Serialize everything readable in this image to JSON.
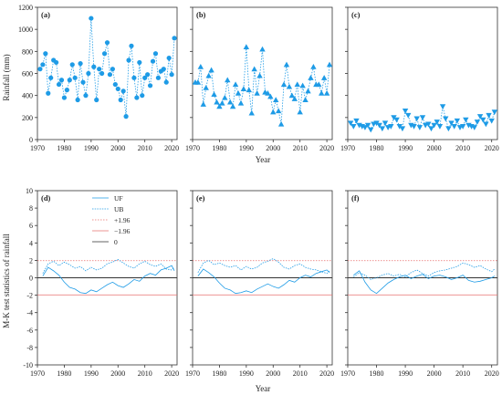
{
  "figure": {
    "top_ylabel": "Rainfall (mm)",
    "bottom_ylabel": "M-K test statistics of rainfall",
    "xlabel": "Year"
  },
  "chart_data": [
    {
      "id": "a",
      "type": "scatter",
      "label": "(a)",
      "marker": "circle",
      "color": "#1E9BE6",
      "xlim": [
        1970,
        2022
      ],
      "ylim": [
        0,
        1200
      ],
      "xticks": [
        1970,
        1980,
        1990,
        2000,
        2010,
        2020
      ],
      "yticks": [
        0,
        200,
        400,
        600,
        800,
        1000,
        1200
      ],
      "x": [
        1971,
        1972,
        1973,
        1974,
        1975,
        1976,
        1977,
        1978,
        1979,
        1980,
        1981,
        1982,
        1983,
        1984,
        1985,
        1986,
        1987,
        1988,
        1989,
        1990,
        1991,
        1992,
        1993,
        1994,
        1995,
        1996,
        1997,
        1998,
        1999,
        2000,
        2001,
        2002,
        2003,
        2004,
        2005,
        2006,
        2007,
        2008,
        2009,
        2010,
        2011,
        2012,
        2013,
        2014,
        2015,
        2016,
        2017,
        2018,
        2019,
        2020,
        2021
      ],
      "values": [
        640,
        680,
        780,
        420,
        560,
        720,
        700,
        500,
        540,
        380,
        450,
        540,
        680,
        560,
        360,
        690,
        520,
        400,
        600,
        1100,
        660,
        360,
        640,
        600,
        780,
        880,
        590,
        640,
        500,
        460,
        360,
        440,
        210,
        720,
        850,
        560,
        380,
        700,
        400,
        560,
        590,
        490,
        710,
        780,
        560,
        620,
        640,
        520,
        740,
        590,
        920
      ]
    },
    {
      "id": "b",
      "type": "scatter",
      "label": "(b)",
      "marker": "triangle-up",
      "color": "#1E9BE6",
      "xlim": [
        1970,
        2022
      ],
      "ylim": [
        0,
        1200
      ],
      "xticks": [
        1970,
        1980,
        1990,
        2000,
        2010,
        2020
      ],
      "x": [
        1971,
        1972,
        1973,
        1974,
        1975,
        1976,
        1977,
        1978,
        1979,
        1980,
        1981,
        1982,
        1983,
        1984,
        1985,
        1986,
        1987,
        1988,
        1989,
        1990,
        1991,
        1992,
        1993,
        1994,
        1995,
        1996,
        1997,
        1998,
        1999,
        2000,
        2001,
        2002,
        2003,
        2004,
        2005,
        2006,
        2007,
        2008,
        2009,
        2010,
        2011,
        2012,
        2013,
        2014,
        2015,
        2016,
        2017,
        2018,
        2019,
        2020,
        2021
      ],
      "values": [
        520,
        520,
        660,
        320,
        470,
        580,
        630,
        410,
        340,
        300,
        330,
        380,
        540,
        340,
        300,
        500,
        420,
        330,
        460,
        840,
        450,
        240,
        640,
        420,
        580,
        820,
        430,
        420,
        390,
        250,
        360,
        260,
        140,
        500,
        680,
        480,
        400,
        370,
        500,
        250,
        490,
        360,
        440,
        560,
        660,
        500,
        500,
        420,
        560,
        420,
        680
      ]
    },
    {
      "id": "c",
      "type": "scatter",
      "label": "(c)",
      "marker": "triangle-down",
      "color": "#1E9BE6",
      "xlim": [
        1970,
        2022
      ],
      "ylim": [
        0,
        1200
      ],
      "xticks": [
        1970,
        1980,
        1990,
        2000,
        2010,
        2020
      ],
      "x": [
        1971,
        1972,
        1973,
        1974,
        1975,
        1976,
        1977,
        1978,
        1979,
        1980,
        1981,
        1982,
        1983,
        1984,
        1985,
        1986,
        1987,
        1988,
        1989,
        1990,
        1991,
        1992,
        1993,
        1994,
        1995,
        1996,
        1997,
        1998,
        1999,
        2000,
        2001,
        2002,
        2003,
        2004,
        2005,
        2006,
        2007,
        2008,
        2009,
        2010,
        2011,
        2012,
        2013,
        2014,
        2015,
        2016,
        2017,
        2018,
        2019,
        2020,
        2021
      ],
      "values": [
        150,
        120,
        170,
        130,
        120,
        110,
        130,
        90,
        140,
        150,
        130,
        100,
        150,
        110,
        120,
        200,
        180,
        120,
        100,
        260,
        220,
        130,
        120,
        190,
        110,
        200,
        130,
        140,
        100,
        130,
        160,
        120,
        300,
        190,
        100,
        150,
        120,
        170,
        110,
        120,
        180,
        130,
        120,
        110,
        160,
        210,
        180,
        140,
        220,
        170,
        250
      ]
    },
    {
      "id": "d",
      "type": "line",
      "label": "(d)",
      "xlim": [
        1970,
        2022
      ],
      "ylim": [
        -10,
        10
      ],
      "xticks": [
        1970,
        1980,
        1990,
        2000,
        2010,
        2020
      ],
      "yticks": [
        -10,
        -8,
        -6,
        -4,
        -2,
        0,
        2,
        4,
        6,
        8,
        10
      ],
      "legend": [
        "UF",
        "UB",
        "+1.96",
        "−1.96",
        "0"
      ],
      "thresholds": {
        "upper": 1.96,
        "lower": -1.96,
        "zero": 0
      },
      "x": [
        1972,
        1974,
        1976,
        1978,
        1980,
        1982,
        1984,
        1986,
        1988,
        1990,
        1992,
        1994,
        1996,
        1998,
        2000,
        2002,
        2004,
        2006,
        2008,
        2010,
        2012,
        2014,
        2016,
        2018,
        2020,
        2021
      ],
      "series": [
        {
          "name": "UF",
          "values": [
            0.2,
            1.2,
            0.8,
            0.3,
            -0.5,
            -1.1,
            -1.3,
            -1.7,
            -1.8,
            -1.4,
            -1.6,
            -1.2,
            -0.8,
            -0.5,
            -0.9,
            -1.1,
            -0.7,
            -0.2,
            -0.4,
            0.2,
            0.5,
            0.3,
            0.9,
            1.1,
            1.4,
            0.8
          ]
        },
        {
          "name": "UB",
          "values": [
            0.5,
            1.6,
            1.9,
            1.4,
            1.8,
            1.5,
            1.1,
            1.3,
            0.8,
            1.2,
            0.9,
            1.1,
            1.6,
            1.8,
            2.1,
            1.7,
            1.3,
            1.1,
            1.6,
            1.9,
            1.5,
            1.3,
            1.6,
            1.0,
            0.9,
            1.2
          ]
        }
      ]
    },
    {
      "id": "e",
      "type": "line",
      "label": "(e)",
      "xlim": [
        1970,
        2022
      ],
      "ylim": [
        -10,
        10
      ],
      "xticks": [
        1970,
        1980,
        1990,
        2000,
        2010,
        2020
      ],
      "thresholds": {
        "upper": 1.96,
        "lower": -1.96,
        "zero": 0
      },
      "x": [
        1972,
        1974,
        1976,
        1978,
        1980,
        1982,
        1984,
        1986,
        1988,
        1990,
        1992,
        1994,
        1996,
        1998,
        2000,
        2002,
        2004,
        2006,
        2008,
        2010,
        2012,
        2014,
        2016,
        2018,
        2020,
        2021
      ],
      "series": [
        {
          "name": "UF",
          "values": [
            0.2,
            1.0,
            0.6,
            0.1,
            -0.6,
            -1.2,
            -1.4,
            -1.8,
            -1.7,
            -1.5,
            -1.7,
            -1.3,
            -1.0,
            -0.7,
            -1.0,
            -1.2,
            -0.8,
            -0.3,
            -0.5,
            0.0,
            0.3,
            0.1,
            0.5,
            0.7,
            0.9,
            0.6
          ]
        },
        {
          "name": "UB",
          "values": [
            0.6,
            1.7,
            2.0,
            1.5,
            1.7,
            1.4,
            1.2,
            1.4,
            0.9,
            1.3,
            1.0,
            1.2,
            1.7,
            1.9,
            2.2,
            1.8,
            1.2,
            1.0,
            1.4,
            1.6,
            1.2,
            1.0,
            0.9,
            0.7,
            0.5,
            0.8
          ]
        }
      ]
    },
    {
      "id": "f",
      "type": "line",
      "label": "(f)",
      "xlim": [
        1970,
        2022
      ],
      "ylim": [
        -10,
        10
      ],
      "xticks": [
        1970,
        1980,
        1990,
        2000,
        2010,
        2020
      ],
      "thresholds": {
        "upper": 1.96,
        "lower": -1.96,
        "zero": 0
      },
      "x": [
        1972,
        1974,
        1976,
        1978,
        1980,
        1982,
        1984,
        1986,
        1988,
        1990,
        1992,
        1994,
        1996,
        1998,
        2000,
        2002,
        2004,
        2006,
        2008,
        2010,
        2012,
        2014,
        2016,
        2018,
        2020,
        2021
      ],
      "series": [
        {
          "name": "UF",
          "values": [
            0.3,
            0.8,
            -0.5,
            -1.4,
            -1.8,
            -1.2,
            -0.6,
            -0.2,
            0.1,
            0.3,
            -0.1,
            0.2,
            0.4,
            -0.1,
            0.2,
            0.3,
            0.1,
            -0.2,
            0.0,
            0.3,
            -0.3,
            -0.5,
            -0.4,
            -0.2,
            0.0,
            0.2
          ]
        },
        {
          "name": "UB",
          "values": [
            0.1,
            0.6,
            0.3,
            -0.2,
            0.0,
            0.3,
            0.5,
            0.2,
            0.4,
            0.1,
            0.6,
            0.9,
            0.5,
            0.2,
            0.6,
            0.8,
            0.9,
            1.1,
            1.3,
            1.7,
            1.5,
            1.2,
            1.4,
            1.0,
            0.7,
            1.0
          ]
        }
      ]
    }
  ]
}
